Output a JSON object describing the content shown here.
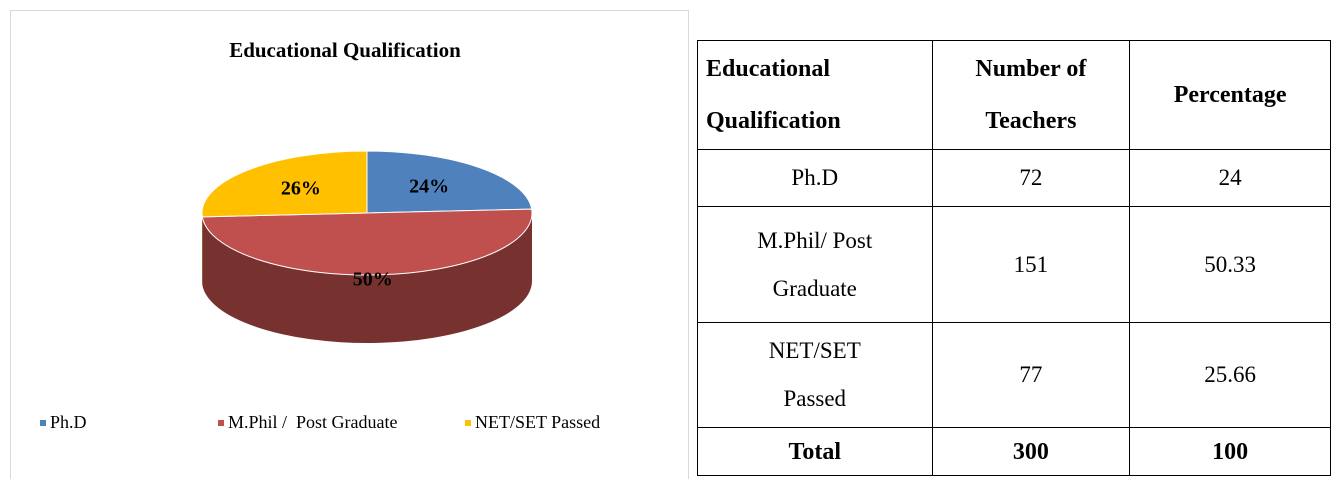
{
  "chart_data": {
    "type": "pie3d",
    "title": "Educational Qualification",
    "categories": [
      "Ph.D",
      "M.Phil /  Post Graduate",
      "NET/SET Passed"
    ],
    "values": [
      24,
      50,
      26
    ],
    "value_labels": [
      "24%",
      "50%",
      "26%"
    ],
    "colors": [
      "#4f81bd",
      "#c0504d",
      "#ffc000"
    ],
    "legend": "bottom"
  },
  "table": {
    "header": [
      [
        "Educational",
        "Qualification"
      ],
      [
        "Number of",
        "Teachers"
      ],
      [
        "Percentage"
      ]
    ],
    "rows": [
      [
        [
          "Ph.D"
        ],
        [
          "72"
        ],
        [
          "24"
        ]
      ],
      [
        [
          "M.Phil/ Post",
          "Graduate"
        ],
        [
          "151"
        ],
        [
          "50.33"
        ]
      ],
      [
        [
          "NET/SET",
          "Passed"
        ],
        [
          "77"
        ],
        [
          "25.66"
        ]
      ]
    ],
    "footer": [
      [
        "Total"
      ],
      [
        "300"
      ],
      [
        "100"
      ]
    ]
  }
}
